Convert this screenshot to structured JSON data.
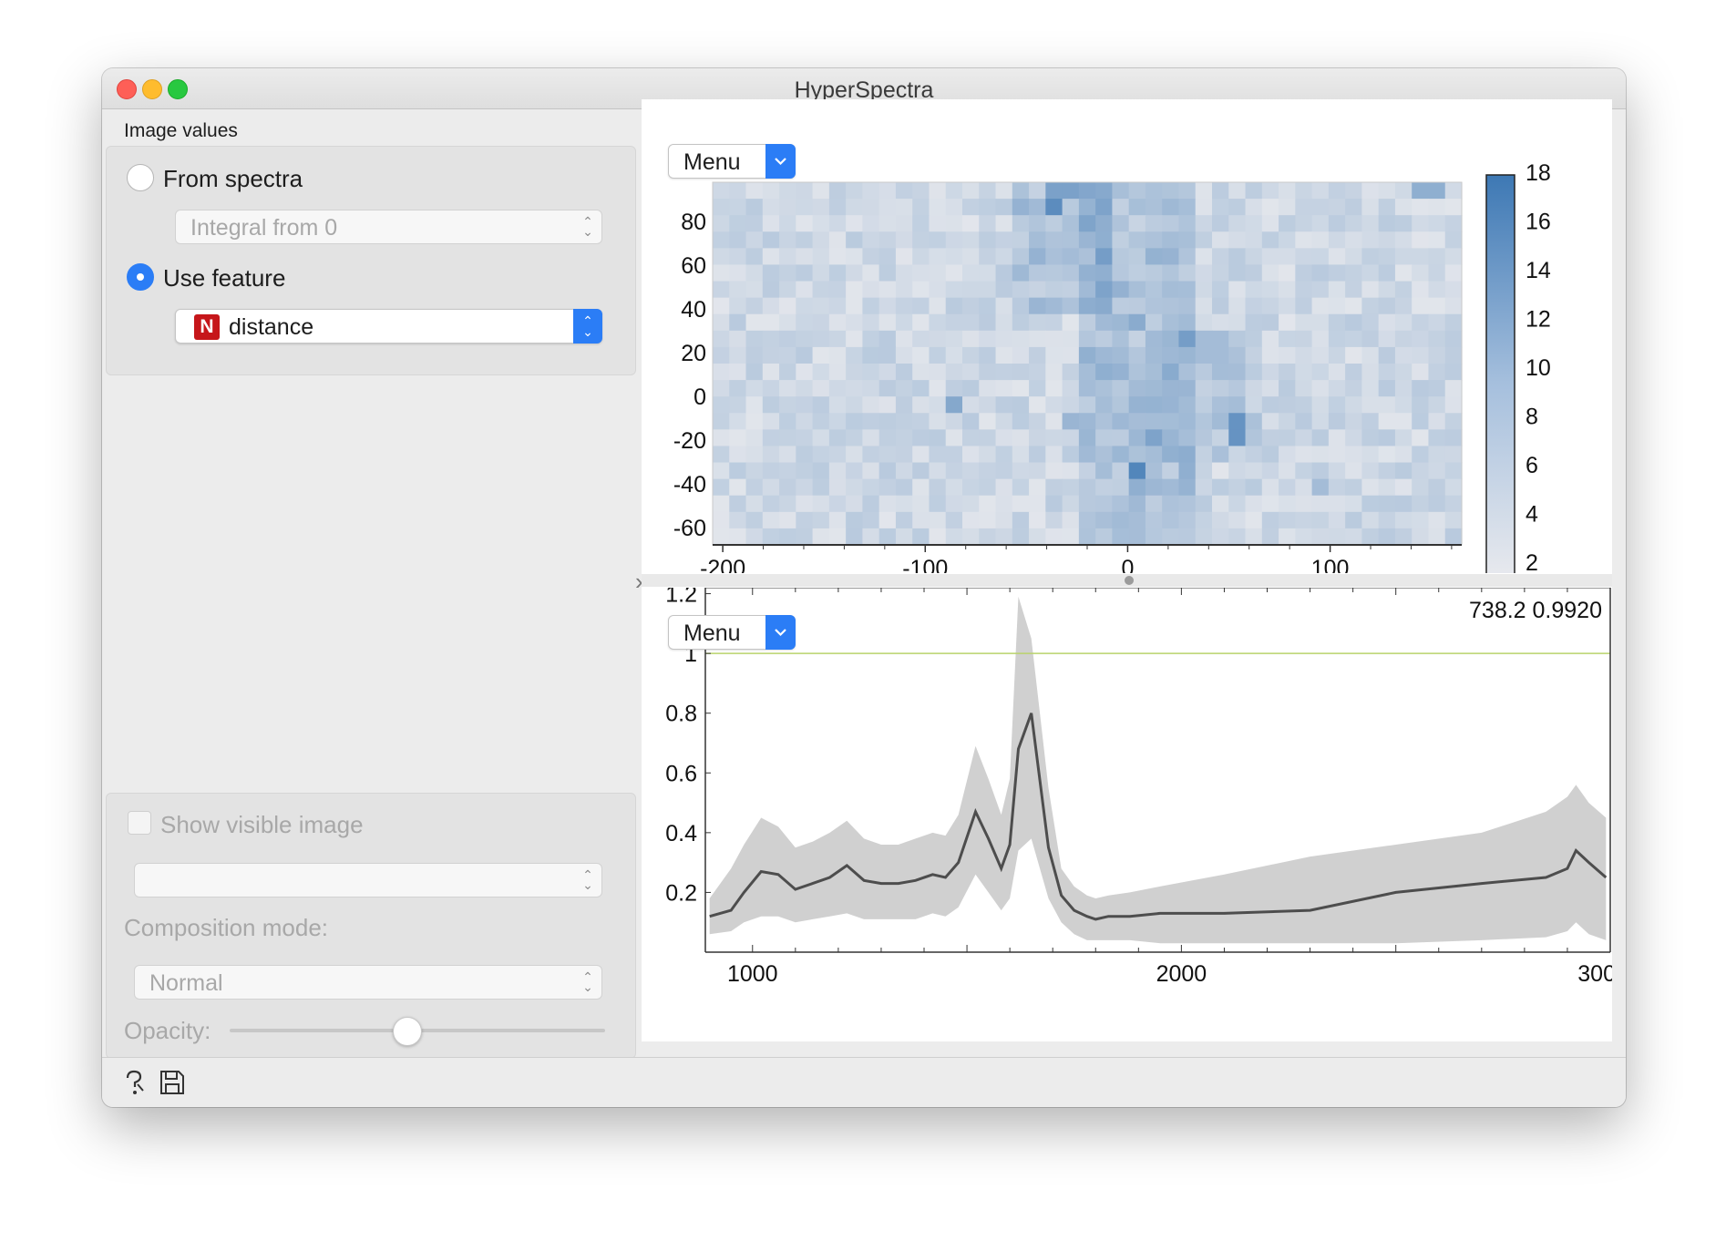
{
  "window": {
    "title": "HyperSpectra"
  },
  "image_values": {
    "group_label": "Image values",
    "from_spectra": {
      "label": "From spectra",
      "checked": false,
      "combo_value": "Integral from 0"
    },
    "use_feature": {
      "label": "Use feature",
      "checked": true,
      "feature_type_badge": "N",
      "combo_value": "distance"
    }
  },
  "visible_image": {
    "show_label": "Show visible image",
    "checked": false,
    "image_combo_value": "",
    "composition_label": "Composition mode:",
    "composition_value": "Normal",
    "opacity_label": "Opacity:",
    "opacity_value": 0.47
  },
  "image_plot": {
    "menu_label": "Menu",
    "x_ticks": [
      "-200",
      "-100",
      "0",
      "100"
    ],
    "y_ticks": [
      "80",
      "60",
      "40",
      "20",
      "0",
      "-20",
      "-40",
      "-60"
    ],
    "colorbar_ticks": [
      "18",
      "16",
      "14",
      "12",
      "10",
      "8",
      "6",
      "4",
      "2"
    ],
    "colorbar_range": [
      1,
      18
    ],
    "colors": {
      "low": "#ececef",
      "high": "#3d78b4"
    }
  },
  "spectra_plot": {
    "menu_label": "Menu",
    "cursor_readout": "738.2 0.9920",
    "x_ticks": [
      "1000",
      "2000",
      "300"
    ],
    "y_ticks": [
      "1.2",
      "1",
      "0.8",
      "0.6",
      "0.4",
      "0.2"
    ],
    "reference_line_y": 1.0,
    "colors": {
      "mean": "#4d4d4d",
      "band": "#d0d0d0",
      "reference": "#b9d36b"
    }
  },
  "chart_data": [
    {
      "type": "heatmap",
      "title": "",
      "xlabel": "",
      "ylabel": "",
      "xlim": [
        -205,
        165
      ],
      "ylim": [
        -68,
        98
      ],
      "grid": false,
      "color_range": [
        1,
        18
      ],
      "hotspots": [
        {
          "x": -38,
          "y": 88,
          "value": 15
        },
        {
          "x": -32,
          "y": 95,
          "value": 12
        },
        {
          "x": -85,
          "y": -6,
          "value": 11
        },
        {
          "x": 52,
          "y": -14,
          "value": 14
        },
        {
          "x": 3,
          "y": -35,
          "value": 16
        },
        {
          "x": -15,
          "y": 9,
          "value": 10
        },
        {
          "x": 25,
          "y": 3,
          "value": 9
        },
        {
          "x": 42,
          "y": 23,
          "value": 8
        },
        {
          "x": -30,
          "y": -12,
          "value": 9
        },
        {
          "x": 95,
          "y": -42,
          "value": 8
        },
        {
          "x": 148,
          "y": 98,
          "value": 10
        }
      ]
    },
    {
      "type": "line",
      "title": "",
      "xlabel": "",
      "ylabel": "",
      "xlim": [
        890,
        3000
      ],
      "ylim": [
        0,
        1.22
      ],
      "grid": false,
      "series": [
        {
          "x": [
            900,
            950,
            980,
            1020,
            1060,
            1100,
            1140,
            1180,
            1220,
            1260,
            1300,
            1340,
            1380,
            1420,
            1450,
            1480,
            1520,
            1550,
            1580,
            1600,
            1620,
            1650,
            1690,
            1720,
            1750,
            1780,
            1800,
            1830,
            1880,
            1950,
            2100,
            2300,
            2500,
            2700,
            2850,
            2900,
            2920,
            2950,
            2990
          ],
          "values": [
            0.12,
            0.14,
            0.2,
            0.27,
            0.26,
            0.21,
            0.23,
            0.25,
            0.29,
            0.24,
            0.23,
            0.23,
            0.24,
            0.26,
            0.25,
            0.3,
            0.47,
            0.38,
            0.28,
            0.36,
            0.68,
            0.8,
            0.35,
            0.19,
            0.14,
            0.12,
            0.11,
            0.12,
            0.12,
            0.13,
            0.13,
            0.14,
            0.2,
            0.23,
            0.25,
            0.28,
            0.34,
            0.3,
            0.25
          ]
        },
        {
          "x": [
            900,
            950,
            980,
            1020,
            1060,
            1100,
            1140,
            1180,
            1220,
            1260,
            1300,
            1340,
            1380,
            1420,
            1450,
            1480,
            1520,
            1550,
            1580,
            1600,
            1620,
            1650,
            1690,
            1720,
            1750,
            1780,
            1800,
            1830,
            1880,
            1950,
            2100,
            2300,
            2500,
            2700,
            2850,
            2900,
            2920,
            2950,
            2990
          ],
          "values": [
            0.18,
            0.28,
            0.36,
            0.45,
            0.42,
            0.35,
            0.37,
            0.4,
            0.44,
            0.38,
            0.36,
            0.36,
            0.38,
            0.4,
            0.39,
            0.46,
            0.69,
            0.58,
            0.46,
            0.58,
            1.19,
            1.05,
            0.55,
            0.28,
            0.22,
            0.19,
            0.18,
            0.19,
            0.2,
            0.22,
            0.26,
            0.32,
            0.36,
            0.4,
            0.47,
            0.52,
            0.56,
            0.5,
            0.45
          ]
        },
        {
          "x": [
            900,
            950,
            980,
            1020,
            1060,
            1100,
            1140,
            1180,
            1220,
            1260,
            1300,
            1340,
            1380,
            1420,
            1450,
            1480,
            1520,
            1550,
            1580,
            1600,
            1620,
            1650,
            1690,
            1720,
            1750,
            1780,
            1800,
            1830,
            1880,
            1950,
            2100,
            2300,
            2500,
            2700,
            2850,
            2900,
            2920,
            2950,
            2990
          ],
          "values": [
            0.06,
            0.07,
            0.1,
            0.12,
            0.12,
            0.1,
            0.11,
            0.12,
            0.13,
            0.11,
            0.11,
            0.11,
            0.11,
            0.13,
            0.12,
            0.15,
            0.26,
            0.2,
            0.14,
            0.18,
            0.34,
            0.38,
            0.18,
            0.1,
            0.06,
            0.04,
            0.04,
            0.04,
            0.04,
            0.03,
            0.03,
            0.03,
            0.03,
            0.04,
            0.05,
            0.07,
            0.1,
            0.06,
            0.04
          ]
        }
      ],
      "reference_line": 1.0
    }
  ]
}
